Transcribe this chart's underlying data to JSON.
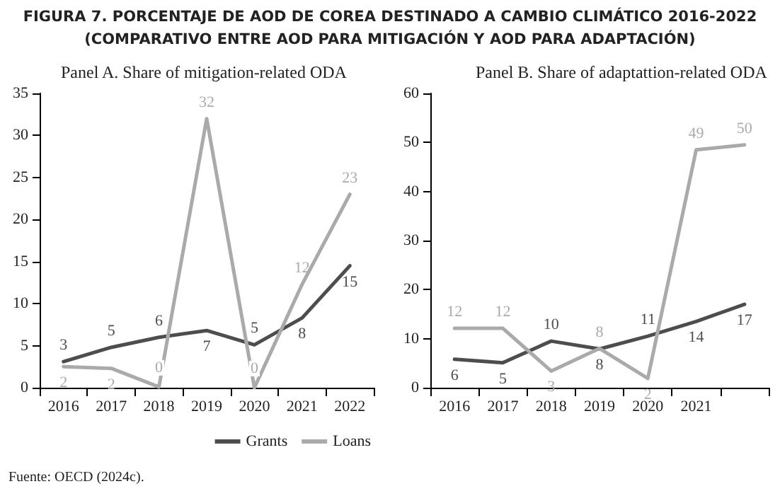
{
  "chart_data": [
    {
      "type": "line",
      "title": "FIGURA 7. PORCENTAJE DE AOD DE COREA DESTINADO A CAMBIO CLIMÁTICO 2016-2022 (COMPARATIVO ENTRE AOD PARA MITIGACIÓN Y AOD PARA ADAPTACIÓN)",
      "subtitle": "Panel A. Share of mitigation-related ODA",
      "annotations": [
        "Fuente: OECD (2024c)."
      ],
      "categories": [
        "2016",
        "2017",
        "2018",
        "2019",
        "2020",
        "2021",
        "2022"
      ],
      "series": [
        {
          "name": "Grants",
          "color": "#4d4d4d",
          "values": [
            3.1,
            4.8,
            6,
            6.8,
            5.1,
            8.3,
            14.5
          ],
          "value_labels": [
            "3",
            "5",
            "6",
            "7",
            "5",
            "8",
            "15"
          ]
        },
        {
          "name": "Loans",
          "color": "#aaaaaa",
          "values": [
            2.5,
            2.3,
            0.1,
            32,
            0,
            12.3,
            23
          ],
          "value_labels": [
            "2",
            "2",
            "0",
            "32",
            "0",
            "12",
            "23"
          ]
        }
      ],
      "ylim": [
        0,
        35
      ],
      "yticks": [
        0,
        5,
        10,
        15,
        20,
        25,
        30,
        35
      ],
      "grid": false,
      "legend": "bottom",
      "marker": "none",
      "line_style": "solid"
    },
    {
      "type": "line",
      "subtitle": "Panel B. Share of adaptattion-related ODA",
      "categories": [
        "2016",
        "2017",
        "2018",
        "2019",
        "2020",
        "2021",
        null
      ],
      "series": [
        {
          "name": "Grants",
          "color": "#4d4d4d",
          "values": [
            5.8,
            5.1,
            9.5,
            7.9,
            10.5,
            13.5,
            17
          ],
          "value_labels": [
            "6",
            "5",
            "10",
            "8",
            "11",
            "14",
            "17"
          ]
        },
        {
          "name": "Loans",
          "color": "#aaaaaa",
          "values": [
            12.1,
            12.1,
            3.4,
            8,
            1.9,
            48.5,
            49.5
          ],
          "value_labels": [
            "12",
            "12",
            "3",
            "8",
            "2",
            "49",
            "50"
          ]
        }
      ],
      "ylim": [
        0,
        60
      ],
      "yticks": [
        0,
        10,
        20,
        30,
        40,
        50,
        60
      ],
      "grid": false,
      "legend": false,
      "marker": "none",
      "line_style": "solid"
    }
  ]
}
